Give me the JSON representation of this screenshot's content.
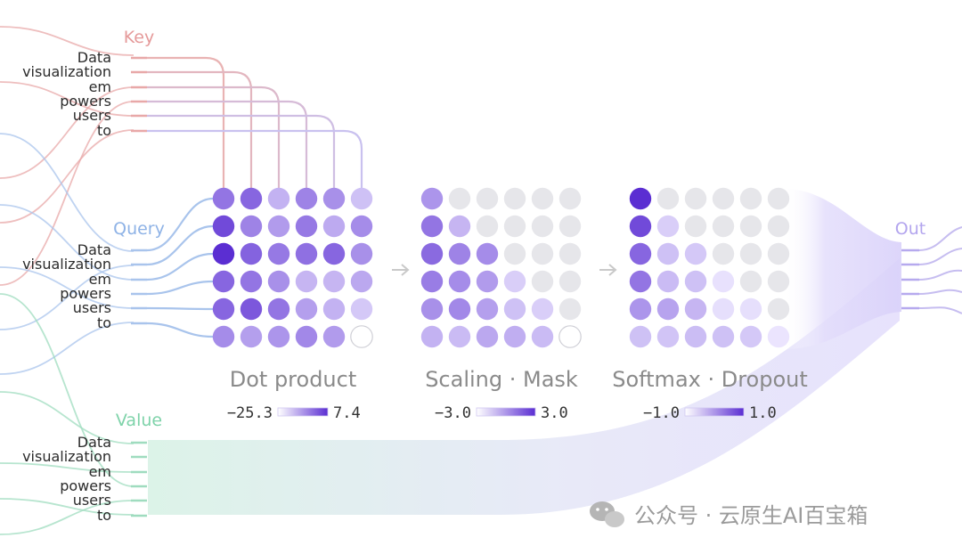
{
  "tokens": [
    "Data",
    "visualization",
    "em",
    "powers",
    "users",
    "to"
  ],
  "sections": {
    "key": "Key",
    "query": "Query",
    "value": "Value",
    "out": "Out"
  },
  "stages": [
    {
      "title": "Dot product",
      "min_label": "−25.3",
      "max_label": "7.4",
      "levels": [
        [
          0.62,
          0.7,
          0.3,
          0.55,
          0.48,
          0.22
        ],
        [
          0.85,
          0.55,
          0.42,
          0.6,
          0.34,
          0.5
        ],
        [
          1.0,
          0.72,
          0.6,
          0.65,
          0.7,
          0.48
        ],
        [
          0.7,
          0.62,
          0.48,
          0.28,
          0.28,
          0.35
        ],
        [
          0.7,
          0.78,
          0.62,
          0.4,
          0.3,
          0.18
        ],
        [
          0.5,
          0.4,
          0.45,
          0.52,
          0.42,
          0.0
        ]
      ]
    },
    {
      "title": "Scaling · Mask",
      "min_label": "−3.0",
      "max_label": "3.0",
      "levels": [
        [
          0.45,
          null,
          null,
          null,
          null,
          null
        ],
        [
          0.62,
          0.28,
          null,
          null,
          null,
          null
        ],
        [
          0.68,
          0.55,
          0.5,
          null,
          null,
          null
        ],
        [
          0.58,
          0.5,
          0.42,
          0.15,
          null,
          null
        ],
        [
          0.48,
          0.52,
          0.4,
          0.22,
          0.15,
          null
        ],
        [
          0.3,
          0.25,
          0.35,
          0.32,
          0.25,
          0.0
        ]
      ]
    },
    {
      "title": "Softmax · Dropout",
      "min_label": "−1.0",
      "max_label": "1.0",
      "levels": [
        [
          1.0,
          null,
          null,
          null,
          null,
          null
        ],
        [
          0.85,
          0.15,
          null,
          null,
          null,
          null
        ],
        [
          0.7,
          0.22,
          0.18,
          null,
          null,
          null
        ],
        [
          0.62,
          0.25,
          0.22,
          0.05,
          null,
          null
        ],
        [
          0.45,
          0.38,
          0.28,
          0.06,
          0.06,
          null
        ],
        [
          0.22,
          0.2,
          0.24,
          0.22,
          0.18,
          0.03
        ]
      ]
    }
  ],
  "colors": {
    "key": "#e8a8a8",
    "query": "#a9c4ec",
    "value": "#9fdcbf",
    "out": "#c6bdf0",
    "cell_max": "#5b2ed2",
    "cell_min": "#efeaff",
    "masked": "#e6e6ea"
  },
  "watermark": "公众号 · 云原生AI百宝箱"
}
